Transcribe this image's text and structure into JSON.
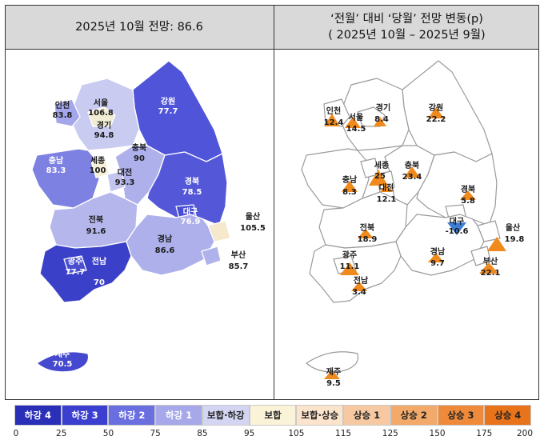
{
  "headers": {
    "left": "2025년 10월 전망: 86.6",
    "right_line1": "‘전월’ 대비 ‘당월’ 전망 변동(p)",
    "right_line2": "( 2025년 10월  –   2025년 9월)"
  },
  "left_map": {
    "regions": [
      {
        "name": "인천",
        "value": "83.8"
      },
      {
        "name": "서울",
        "value": "106.8"
      },
      {
        "name": "경기",
        "value": "94.8"
      },
      {
        "name": "강원",
        "value": "77.7"
      },
      {
        "name": "충남",
        "value": "83.3"
      },
      {
        "name": "세종",
        "value": "100"
      },
      {
        "name": "대전",
        "value": "93.3"
      },
      {
        "name": "충북",
        "value": "90"
      },
      {
        "name": "경북",
        "value": "78.5"
      },
      {
        "name": "대구",
        "value": "76.9"
      },
      {
        "name": "울산",
        "value": "105.5"
      },
      {
        "name": "전북",
        "value": "91.6"
      },
      {
        "name": "경남",
        "value": "86.6"
      },
      {
        "name": "부산",
        "value": "85.7"
      },
      {
        "name": "광주",
        "value": "77.7"
      },
      {
        "name": "전남",
        "value": "70"
      },
      {
        "name": "제주",
        "value": "70.5"
      }
    ]
  },
  "right_map": {
    "regions": [
      {
        "name": "인천",
        "value": "12.4",
        "dir": "up"
      },
      {
        "name": "서울",
        "value": "14.5",
        "dir": "up"
      },
      {
        "name": "경기",
        "value": "8.4",
        "dir": "up"
      },
      {
        "name": "강원",
        "value": "22.2",
        "dir": "up"
      },
      {
        "name": "충남",
        "value": "8.3",
        "dir": "up"
      },
      {
        "name": "세종",
        "value": "25",
        "dir": "up"
      },
      {
        "name": "충북",
        "value": "23.4",
        "dir": "up"
      },
      {
        "name": "대전",
        "value": "12.1",
        "dir": "up"
      },
      {
        "name": "경북",
        "value": "5.8",
        "dir": "up"
      },
      {
        "name": "대구",
        "value": "-10.6",
        "dir": "down"
      },
      {
        "name": "울산",
        "value": "19.8",
        "dir": "up"
      },
      {
        "name": "전북",
        "value": "18.9",
        "dir": "up"
      },
      {
        "name": "경남",
        "value": "9.7",
        "dir": "up"
      },
      {
        "name": "부산",
        "value": "22.1",
        "dir": "up"
      },
      {
        "name": "광주",
        "value": "11.1",
        "dir": "up"
      },
      {
        "name": "전남",
        "value": "3.4",
        "dir": "up"
      },
      {
        "name": "제주",
        "value": "9.5",
        "dir": "up"
      }
    ]
  },
  "legend": {
    "items": [
      {
        "label": "하강 4",
        "color": "#2a2fb8",
        "text_color": "#ffffff"
      },
      {
        "label": "하강 3",
        "color": "#3b3fd0",
        "text_color": "#ffffff"
      },
      {
        "label": "하강 2",
        "color": "#6a6fe0",
        "text_color": "#ffffff"
      },
      {
        "label": "하강 1",
        "color": "#a6a8ea",
        "text_color": "#ffffff"
      },
      {
        "label": "보합·하강",
        "color": "#d4d5f3",
        "text_color": "#222222"
      },
      {
        "label": "보합",
        "color": "#fbf3d8",
        "text_color": "#222222"
      },
      {
        "label": "보합·상승",
        "color": "#fbe3cc",
        "text_color": "#222222"
      },
      {
        "label": "상승 1",
        "color": "#f6c9a3",
        "text_color": "#222222"
      },
      {
        "label": "상승 2",
        "color": "#f2a96a",
        "text_color": "#222222"
      },
      {
        "label": "상승 3",
        "color": "#ee8a3a",
        "text_color": "#222222"
      },
      {
        "label": "상승 4",
        "color": "#e8731a",
        "text_color": "#222222"
      }
    ],
    "ticks": [
      "0",
      "25",
      "50",
      "75",
      "85",
      "95",
      "105",
      "115",
      "125",
      "150",
      "175",
      "200"
    ]
  },
  "colors": {
    "header_bg": "#d9d9d9",
    "arrow_up": "#f08a1c",
    "arrow_down": "#3d7fd6"
  }
}
